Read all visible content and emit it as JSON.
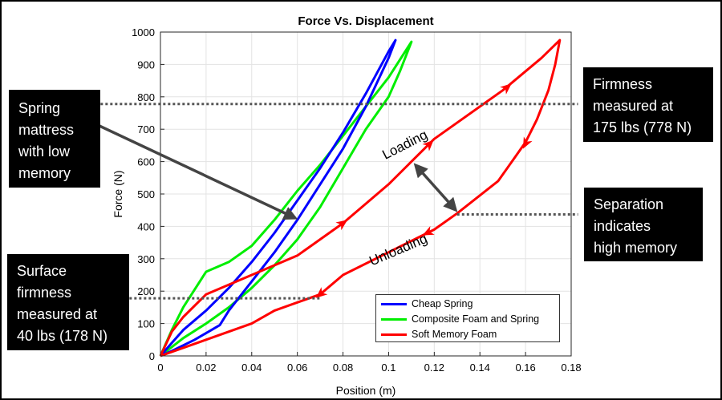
{
  "chart_data": {
    "type": "line",
    "title": "Force Vs. Displacement",
    "xlabel": "Position (m)",
    "ylabel": "Force (N)",
    "xlim": [
      0,
      0.18
    ],
    "ylim": [
      0,
      1000
    ],
    "xticks": [
      "0",
      "0.02",
      "0.04",
      "0.06",
      "0.08",
      "0.1",
      "0.12",
      "0.14",
      "0.16",
      "0.18"
    ],
    "xtick_values": [
      0,
      0.02,
      0.04,
      0.06,
      0.08,
      0.1,
      0.12,
      0.14,
      0.16,
      0.18
    ],
    "yticks": [
      "0",
      "100",
      "200",
      "300",
      "400",
      "500",
      "600",
      "700",
      "800",
      "900",
      "1000"
    ],
    "ytick_values": [
      0,
      100,
      200,
      300,
      400,
      500,
      600,
      700,
      800,
      900,
      1000
    ],
    "grid": true,
    "legend_position": "bottom-right",
    "series": [
      {
        "name": "Cheap Spring",
        "color": "#0000ff",
        "points": [
          [
            0,
            0
          ],
          [
            0.005,
            40
          ],
          [
            0.01,
            80
          ],
          [
            0.02,
            140
          ],
          [
            0.03,
            210
          ],
          [
            0.04,
            290
          ],
          [
            0.05,
            380
          ],
          [
            0.06,
            480
          ],
          [
            0.07,
            580
          ],
          [
            0.08,
            690
          ],
          [
            0.09,
            810
          ],
          [
            0.1,
            940
          ],
          [
            0.103,
            975
          ],
          [
            0.1,
            920
          ],
          [
            0.09,
            770
          ],
          [
            0.08,
            640
          ],
          [
            0.07,
            530
          ],
          [
            0.06,
            420
          ],
          [
            0.05,
            320
          ],
          [
            0.04,
            230
          ],
          [
            0.03,
            140
          ],
          [
            0.026,
            95
          ],
          [
            0.015,
            50
          ],
          [
            0.005,
            15
          ],
          [
            0,
            0
          ]
        ]
      },
      {
        "name": "Composite Foam and Spring",
        "color": "#00ee00",
        "points": [
          [
            0,
            0
          ],
          [
            0.005,
            80
          ],
          [
            0.01,
            150
          ],
          [
            0.02,
            260
          ],
          [
            0.03,
            290
          ],
          [
            0.04,
            340
          ],
          [
            0.05,
            420
          ],
          [
            0.06,
            510
          ],
          [
            0.07,
            590
          ],
          [
            0.08,
            680
          ],
          [
            0.09,
            770
          ],
          [
            0.1,
            860
          ],
          [
            0.11,
            970
          ],
          [
            0.105,
            880
          ],
          [
            0.1,
            800
          ],
          [
            0.09,
            700
          ],
          [
            0.08,
            580
          ],
          [
            0.07,
            460
          ],
          [
            0.06,
            360
          ],
          [
            0.05,
            280
          ],
          [
            0.04,
            210
          ],
          [
            0.03,
            150
          ],
          [
            0.02,
            100
          ],
          [
            0.01,
            55
          ],
          [
            0,
            0
          ]
        ]
      },
      {
        "name": "Soft Memory Foam",
        "color": "#ff0000",
        "points": [
          [
            0,
            0
          ],
          [
            0.005,
            75
          ],
          [
            0.01,
            120
          ],
          [
            0.02,
            190
          ],
          [
            0.04,
            250
          ],
          [
            0.06,
            310
          ],
          [
            0.08,
            410
          ],
          [
            0.1,
            530
          ],
          [
            0.12,
            670
          ],
          [
            0.15,
            820
          ],
          [
            0.167,
            920
          ],
          [
            0.175,
            975
          ],
          [
            0.173,
            900
          ],
          [
            0.17,
            820
          ],
          [
            0.165,
            730
          ],
          [
            0.16,
            660
          ],
          [
            0.155,
            610
          ],
          [
            0.148,
            540
          ],
          [
            0.13,
            440
          ],
          [
            0.12,
            390
          ],
          [
            0.1,
            320
          ],
          [
            0.08,
            250
          ],
          [
            0.07,
            190
          ],
          [
            0.05,
            140
          ],
          [
            0.04,
            100
          ],
          [
            0.02,
            50
          ],
          [
            0.01,
            25
          ],
          [
            0,
            0
          ]
        ]
      }
    ],
    "arrows_on_red": [
      {
        "x": 0.08,
        "y": 410,
        "dir": "load"
      },
      {
        "x": 0.118,
        "y": 655,
        "dir": "load"
      },
      {
        "x": 0.152,
        "y": 830,
        "dir": "load"
      },
      {
        "x": 0.16,
        "y": 655,
        "dir": "unload"
      },
      {
        "x": 0.117,
        "y": 380,
        "dir": "unload"
      },
      {
        "x": 0.07,
        "y": 190,
        "dir": "unload"
      }
    ],
    "reference_lines": [
      {
        "y": 778,
        "x_from": -0.06,
        "x_to": 0.183
      },
      {
        "y": 437,
        "x_from": 0.13,
        "x_to": 0.183
      },
      {
        "y": 178,
        "x_from": -0.06,
        "x_to": 0.07
      }
    ],
    "annotations": [
      {
        "text": "Loading",
        "x": 0.108,
        "y": 640,
        "angle": -27
      },
      {
        "text": "Unloading",
        "x": 0.105,
        "y": 315,
        "angle": -23
      }
    ]
  },
  "callouts": {
    "spring_memory": [
      "Spring",
      "mattress",
      "with low",
      "memory"
    ],
    "firmness_175": [
      "Firmness",
      "measured at",
      "175 lbs (778 N)"
    ],
    "separation": [
      "Separation",
      "indicates",
      "high memory"
    ],
    "surface_firmness": [
      "Surface",
      "firmness",
      "measured at",
      "40 lbs (178 N)"
    ]
  }
}
